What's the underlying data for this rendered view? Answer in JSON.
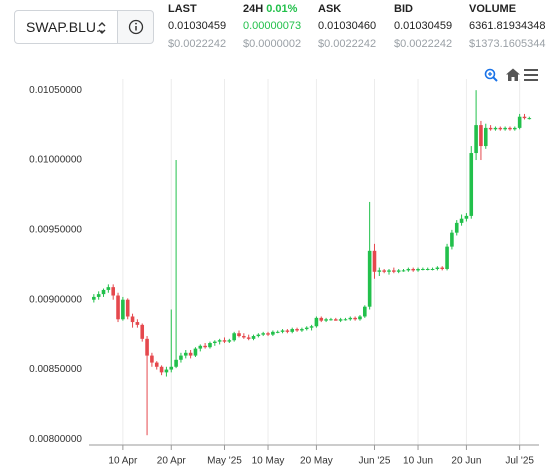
{
  "header": {
    "pair": "SWAP.BLU..",
    "stats": [
      {
        "label": "LAST",
        "value": "0.01030459",
        "usd": "$0.0022242"
      },
      {
        "label": "24H",
        "change": "0.01%",
        "value": "0.00000073",
        "usd": "$0.0000002"
      },
      {
        "label": "ASK",
        "value": "0.01030460",
        "usd": "$0.0022242"
      },
      {
        "label": "BID",
        "value": "0.01030459",
        "usd": "$0.0022242"
      },
      {
        "label": "VOLUME",
        "value": "6361.81934348",
        "usd": "$1373.1605344"
      }
    ]
  },
  "chart_data": {
    "type": "candlestick",
    "up_color": "#22c04b",
    "down_color": "#e5484d",
    "grid": "x",
    "xlim": [
      "2025-04-03",
      "2025-07-05"
    ],
    "xticks": [
      {
        "value": "2025-04-10",
        "label": "10 Apr"
      },
      {
        "value": "2025-04-20",
        "label": "20 Apr"
      },
      {
        "value": "2025-05-01",
        "label": "May '25"
      },
      {
        "value": "2025-05-10",
        "label": "10 May"
      },
      {
        "value": "2025-05-20",
        "label": "20 May"
      },
      {
        "value": "2025-06-01",
        "label": "Jun '25"
      },
      {
        "value": "2025-06-10",
        "label": "10 Jun"
      },
      {
        "value": "2025-06-20",
        "label": "20 Jun"
      },
      {
        "value": "2025-07-01",
        "label": "Jul '25"
      }
    ],
    "ylim": [
      0.00796,
      0.01058
    ],
    "yticks": [
      {
        "value": 0.008,
        "label": "0.00800000"
      },
      {
        "value": 0.0085,
        "label": "0.00850000"
      },
      {
        "value": 0.009,
        "label": "0.00900000"
      },
      {
        "value": 0.0095,
        "label": "0.00950000"
      },
      {
        "value": 0.01,
        "label": "0.01000000"
      },
      {
        "value": 0.0105,
        "label": "0.01050000"
      }
    ],
    "x": [
      "2025-04-04",
      "2025-04-05",
      "2025-04-06",
      "2025-04-07",
      "2025-04-08",
      "2025-04-09",
      "2025-04-10",
      "2025-04-11",
      "2025-04-12",
      "2025-04-13",
      "2025-04-14",
      "2025-04-15",
      "2025-04-16",
      "2025-04-17",
      "2025-04-18",
      "2025-04-19",
      "2025-04-20",
      "2025-04-21",
      "2025-04-22",
      "2025-04-23",
      "2025-04-24",
      "2025-04-25",
      "2025-04-26",
      "2025-04-27",
      "2025-04-28",
      "2025-04-29",
      "2025-04-30",
      "2025-05-01",
      "2025-05-02",
      "2025-05-03",
      "2025-05-04",
      "2025-05-05",
      "2025-05-06",
      "2025-05-07",
      "2025-05-08",
      "2025-05-09",
      "2025-05-10",
      "2025-05-11",
      "2025-05-12",
      "2025-05-13",
      "2025-05-14",
      "2025-05-15",
      "2025-05-16",
      "2025-05-17",
      "2025-05-18",
      "2025-05-19",
      "2025-05-20",
      "2025-05-21",
      "2025-05-22",
      "2025-05-23",
      "2025-05-24",
      "2025-05-25",
      "2025-05-26",
      "2025-05-27",
      "2025-05-28",
      "2025-05-29",
      "2025-05-30",
      "2025-05-31",
      "2025-06-01",
      "2025-06-02",
      "2025-06-03",
      "2025-06-04",
      "2025-06-05",
      "2025-06-06",
      "2025-06-07",
      "2025-06-08",
      "2025-06-09",
      "2025-06-10",
      "2025-06-11",
      "2025-06-12",
      "2025-06-13",
      "2025-06-14",
      "2025-06-15",
      "2025-06-16",
      "2025-06-17",
      "2025-06-18",
      "2025-06-19",
      "2025-06-20",
      "2025-06-21",
      "2025-06-22",
      "2025-06-23",
      "2025-06-24",
      "2025-06-25",
      "2025-06-26",
      "2025-06-27",
      "2025-06-28",
      "2025-06-29",
      "2025-06-30",
      "2025-07-01",
      "2025-07-02",
      "2025-07-03"
    ],
    "ohlc": [
      [
        0.009,
        0.00904,
        0.00898,
        0.00902
      ],
      [
        0.00902,
        0.00906,
        0.009,
        0.00904
      ],
      [
        0.00904,
        0.00908,
        0.00902,
        0.00907
      ],
      [
        0.00907,
        0.00911,
        0.00905,
        0.00909
      ],
      [
        0.00909,
        0.00911,
        0.009,
        0.00903
      ],
      [
        0.00903,
        0.00905,
        0.00884,
        0.00886
      ],
      [
        0.00886,
        0.00902,
        0.00885,
        0.009
      ],
      [
        0.009,
        0.00901,
        0.00886,
        0.00888
      ],
      [
        0.00888,
        0.0089,
        0.0088,
        0.00884
      ],
      [
        0.00884,
        0.00886,
        0.0088,
        0.00882
      ],
      [
        0.00882,
        0.00883,
        0.0087,
        0.00872
      ],
      [
        0.00872,
        0.00874,
        0.00803,
        0.0086
      ],
      [
        0.0086,
        0.00862,
        0.00852,
        0.00855
      ],
      [
        0.00855,
        0.00856,
        0.0085,
        0.00852
      ],
      [
        0.00852,
        0.00853,
        0.00846,
        0.00848
      ],
      [
        0.00848,
        0.00852,
        0.00845,
        0.0085
      ],
      [
        0.0085,
        0.00893,
        0.00848,
        0.00852
      ],
      [
        0.00852,
        0.01,
        0.00851,
        0.00857
      ],
      [
        0.00857,
        0.00862,
        0.00855,
        0.0086
      ],
      [
        0.0086,
        0.00864,
        0.00858,
        0.00862
      ],
      [
        0.00862,
        0.00864,
        0.00858,
        0.0086
      ],
      [
        0.0086,
        0.00866,
        0.00859,
        0.00865
      ],
      [
        0.00865,
        0.00868,
        0.00863,
        0.00867
      ],
      [
        0.00867,
        0.00869,
        0.00865,
        0.00866
      ],
      [
        0.00866,
        0.0087,
        0.00865,
        0.00869
      ],
      [
        0.00869,
        0.00871,
        0.00867,
        0.0087
      ],
      [
        0.0087,
        0.00872,
        0.00868,
        0.00871
      ],
      [
        0.00871,
        0.00873,
        0.00869,
        0.0087
      ],
      [
        0.0087,
        0.00872,
        0.00869,
        0.00871
      ],
      [
        0.00871,
        0.00877,
        0.0087,
        0.00876
      ],
      [
        0.00876,
        0.00878,
        0.00873,
        0.00874
      ],
      [
        0.00874,
        0.00876,
        0.00872,
        0.00873
      ],
      [
        0.00873,
        0.00875,
        0.00871,
        0.00872
      ],
      [
        0.00872,
        0.00875,
        0.00871,
        0.00874
      ],
      [
        0.00874,
        0.00876,
        0.00873,
        0.00875
      ],
      [
        0.00875,
        0.00877,
        0.00874,
        0.00876
      ],
      [
        0.00876,
        0.00877,
        0.00874,
        0.00875
      ],
      [
        0.00875,
        0.00878,
        0.00874,
        0.00877
      ],
      [
        0.00877,
        0.00878,
        0.00876,
        0.00877
      ],
      [
        0.00877,
        0.00879,
        0.00876,
        0.00878
      ],
      [
        0.00878,
        0.00879,
        0.00876,
        0.00877
      ],
      [
        0.00877,
        0.0088,
        0.00876,
        0.00879
      ],
      [
        0.00879,
        0.0088,
        0.00877,
        0.00878
      ],
      [
        0.00878,
        0.0088,
        0.00877,
        0.00879
      ],
      [
        0.00879,
        0.00881,
        0.00878,
        0.0088
      ],
      [
        0.0088,
        0.00882,
        0.00878,
        0.00881
      ],
      [
        0.00881,
        0.00888,
        0.0088,
        0.00887
      ],
      [
        0.00887,
        0.00888,
        0.00884,
        0.00885
      ],
      [
        0.00885,
        0.00887,
        0.00884,
        0.00886
      ],
      [
        0.00886,
        0.00887,
        0.00885,
        0.00886
      ],
      [
        0.00886,
        0.00887,
        0.00885,
        0.00885
      ],
      [
        0.00885,
        0.00887,
        0.00884,
        0.00886
      ],
      [
        0.00886,
        0.00887,
        0.00885,
        0.00886
      ],
      [
        0.00886,
        0.00888,
        0.00885,
        0.00887
      ],
      [
        0.00887,
        0.00888,
        0.00885,
        0.00886
      ],
      [
        0.00886,
        0.00889,
        0.00885,
        0.00888
      ],
      [
        0.00888,
        0.00896,
        0.00887,
        0.00895
      ],
      [
        0.00895,
        0.0097,
        0.00893,
        0.00935
      ],
      [
        0.00935,
        0.0094,
        0.00915,
        0.0092
      ],
      [
        0.0092,
        0.00923,
        0.00917,
        0.00921
      ],
      [
        0.00921,
        0.00922,
        0.00919,
        0.0092
      ],
      [
        0.0092,
        0.00922,
        0.00918,
        0.00921
      ],
      [
        0.00921,
        0.00923,
        0.00919,
        0.0092
      ],
      [
        0.0092,
        0.00922,
        0.00919,
        0.00921
      ],
      [
        0.00921,
        0.00922,
        0.0092,
        0.00921
      ],
      [
        0.00921,
        0.00923,
        0.0092,
        0.00922
      ],
      [
        0.00922,
        0.00923,
        0.0092,
        0.00921
      ],
      [
        0.00921,
        0.00923,
        0.0092,
        0.00922
      ],
      [
        0.00922,
        0.00923,
        0.00921,
        0.00922
      ],
      [
        0.00922,
        0.00923,
        0.00921,
        0.00922
      ],
      [
        0.00922,
        0.00923,
        0.00921,
        0.00922
      ],
      [
        0.00922,
        0.00924,
        0.00921,
        0.00923
      ],
      [
        0.00923,
        0.00924,
        0.00921,
        0.00922
      ],
      [
        0.00922,
        0.0094,
        0.00921,
        0.00938
      ],
      [
        0.00938,
        0.0095,
        0.00936,
        0.00948
      ],
      [
        0.00948,
        0.00957,
        0.00946,
        0.00955
      ],
      [
        0.00955,
        0.00961,
        0.00953,
        0.00958
      ],
      [
        0.00958,
        0.00962,
        0.00956,
        0.0096
      ],
      [
        0.0096,
        0.0101,
        0.00958,
        0.01005
      ],
      [
        0.01005,
        0.0105,
        0.01,
        0.01025
      ],
      [
        0.01025,
        0.01028,
        0.01,
        0.0101
      ],
      [
        0.0101,
        0.01026,
        0.01008,
        0.01023
      ],
      [
        0.01023,
        0.01025,
        0.01021,
        0.01022
      ],
      [
        0.01022,
        0.01024,
        0.01021,
        0.01023
      ],
      [
        0.01023,
        0.01024,
        0.01021,
        0.01022
      ],
      [
        0.01022,
        0.01024,
        0.01021,
        0.01023
      ],
      [
        0.01023,
        0.01024,
        0.01021,
        0.01022
      ],
      [
        0.01022,
        0.01024,
        0.01021,
        0.01023
      ],
      [
        0.01023,
        0.01033,
        0.01022,
        0.01031
      ],
      [
        0.01031,
        0.01033,
        0.01029,
        0.0103
      ],
      [
        0.0103,
        0.01031,
        0.01029,
        0.0103
      ]
    ]
  }
}
